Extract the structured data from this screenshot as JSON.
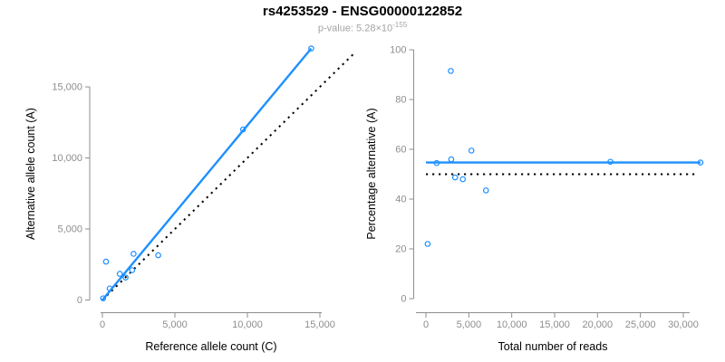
{
  "header": {
    "title": "rs4253529 - ENSG00000122852",
    "subtitle_prefix": "p-value: 5.28×10",
    "subtitle_exponent": "-155"
  },
  "colors": {
    "accent_blue": "#1E90FF",
    "dotted_line": "#000000",
    "tick_text": "#8e8e8e",
    "axis_line": "#8e8e8e",
    "axis_label_text": "#000000",
    "subtitle_text": "#a3a3a3",
    "background": "#ffffff"
  },
  "chart_data": [
    {
      "id": "allele-counts",
      "type": "scatter",
      "xlabel": "Reference allele count (C)",
      "ylabel": "Alternative allele count (A)",
      "xlim": [
        0,
        15000
      ],
      "ylim": [
        0,
        15000
      ],
      "grid": false,
      "xtick_values": [
        0,
        5000,
        10000,
        15000
      ],
      "xtick_labels": [
        "0",
        "5,000",
        "10,000",
        "15,000"
      ],
      "ytick_values": [
        0,
        5000,
        10000,
        15000
      ],
      "ytick_labels": [
        "0",
        "5,000",
        "10,000",
        "15,000"
      ],
      "points": [
        [
          50,
          120
        ],
        [
          250,
          2700
        ],
        [
          500,
          810
        ],
        [
          1200,
          1840
        ],
        [
          1600,
          1580
        ],
        [
          2050,
          2100
        ],
        [
          2150,
          3250
        ],
        [
          3850,
          3150
        ],
        [
          9700,
          12000
        ],
        [
          14400,
          17700
        ]
      ],
      "lines": [
        {
          "name": "identity-line",
          "style": "dotted",
          "color": "#000000",
          "x1": 0,
          "y1": 0,
          "x2": 17350,
          "y2": 17350
        },
        {
          "name": "fit-line",
          "style": "solid",
          "color": "#1E90FF",
          "x1": 0,
          "y1": 0,
          "x2": 14400,
          "y2": 17700
        }
      ]
    },
    {
      "id": "percentage",
      "type": "scatter",
      "xlabel": "Total number of reads",
      "ylabel": "Percentage alternative (A)",
      "xlim": [
        0,
        30000
      ],
      "ylim": [
        0,
        100
      ],
      "grid": false,
      "xtick_values": [
        0,
        5000,
        10000,
        15000,
        20000,
        25000,
        30000
      ],
      "xtick_labels": [
        "0",
        "5,000",
        "10,000",
        "15,000",
        "20,000",
        "25,000",
        "30,000"
      ],
      "ytick_values": [
        0,
        20,
        40,
        60,
        80,
        100
      ],
      "ytick_labels": [
        "0",
        "20",
        "40",
        "60",
        "80",
        "100"
      ],
      "points": [
        [
          200,
          22
        ],
        [
          1250,
          54.5
        ],
        [
          2900,
          91.5
        ],
        [
          2950,
          56
        ],
        [
          3400,
          48.7
        ],
        [
          4300,
          48
        ],
        [
          5300,
          59.5
        ],
        [
          7000,
          43.5
        ],
        [
          21500,
          55
        ],
        [
          32000,
          54.7
        ]
      ],
      "lines": [
        {
          "name": "expected-line",
          "style": "dotted",
          "color": "#000000",
          "x1": 0,
          "y1": 50,
          "x2": 31400,
          "y2": 50
        },
        {
          "name": "fit-line",
          "style": "solid",
          "color": "#1E90FF",
          "x1": 0,
          "y1": 54.7,
          "x2": 32000,
          "y2": 54.7
        }
      ]
    }
  ]
}
